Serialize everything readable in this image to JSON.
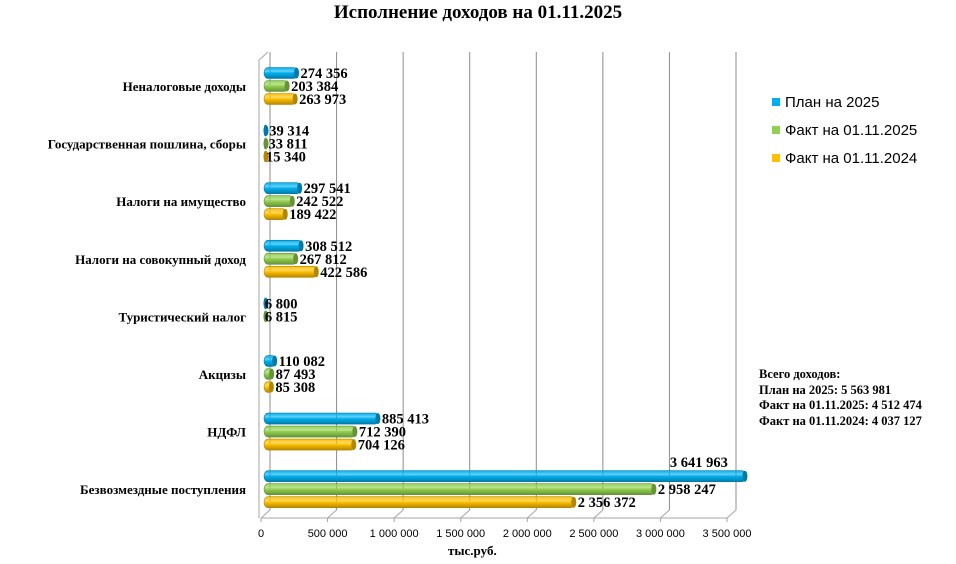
{
  "chart_data": {
    "type": "bar",
    "orientation": "horizontal",
    "title": "Исполнение доходов на 01.11.2025",
    "xlabel": "тыс.руб.",
    "ylabel": "",
    "xlim": [
      0,
      3500000
    ],
    "x_ticks": [
      "0",
      "500 000",
      "1 000 000",
      "1 500 000",
      "2 000 000",
      "2 500 000",
      "3 000 000",
      "3 500 000"
    ],
    "x_tick_values": [
      0,
      500000,
      1000000,
      1500000,
      2000000,
      2500000,
      3000000,
      3500000
    ],
    "grid": true,
    "legend_position": "right",
    "categories": [
      "Неналоговые доходы",
      "Государственная пошлина,  сборы",
      "Налоги на имущество",
      "Налоги на совокупный доход",
      "Туристический  налог",
      "Акцизы",
      "НДФЛ",
      "Безвозмездные поступления"
    ],
    "series": [
      {
        "name": "План на 2025",
        "color": "#00B0F0",
        "values": [
          274356,
          39314,
          297541,
          308512,
          6800,
          110082,
          885413,
          3641963
        ],
        "labels": [
          "274 356",
          "39 314",
          "297 541",
          "308 512",
          "6 800",
          "110 082",
          "885 413",
          "3 641 963"
        ]
      },
      {
        "name": "Факт на 01.11.2025",
        "color": "#92D050",
        "values": [
          203384,
          33811,
          242522,
          267812,
          6815,
          87493,
          712390,
          2958247
        ],
        "labels": [
          "203 384",
          "33 811",
          "242 522",
          "267 812",
          "6 815",
          "87 493",
          "712 390",
          "2 958 247"
        ]
      },
      {
        "name": "Факт на 01.11.2024",
        "color": "#FFC000",
        "values": [
          263973,
          15340,
          189422,
          422586,
          0,
          85308,
          704126,
          2356372
        ],
        "labels": [
          "263 973",
          "15 340",
          "189 422",
          "422 586",
          "",
          "85 308",
          "704 126",
          "2 356 372"
        ]
      }
    ]
  },
  "totals": {
    "heading": "Всего доходов:",
    "lines": [
      "План на 2025: 5 563 981",
      "Факт на 01.11.2025: 4 512 474",
      "Факт на 01.11.2024: 4 037 127"
    ]
  }
}
